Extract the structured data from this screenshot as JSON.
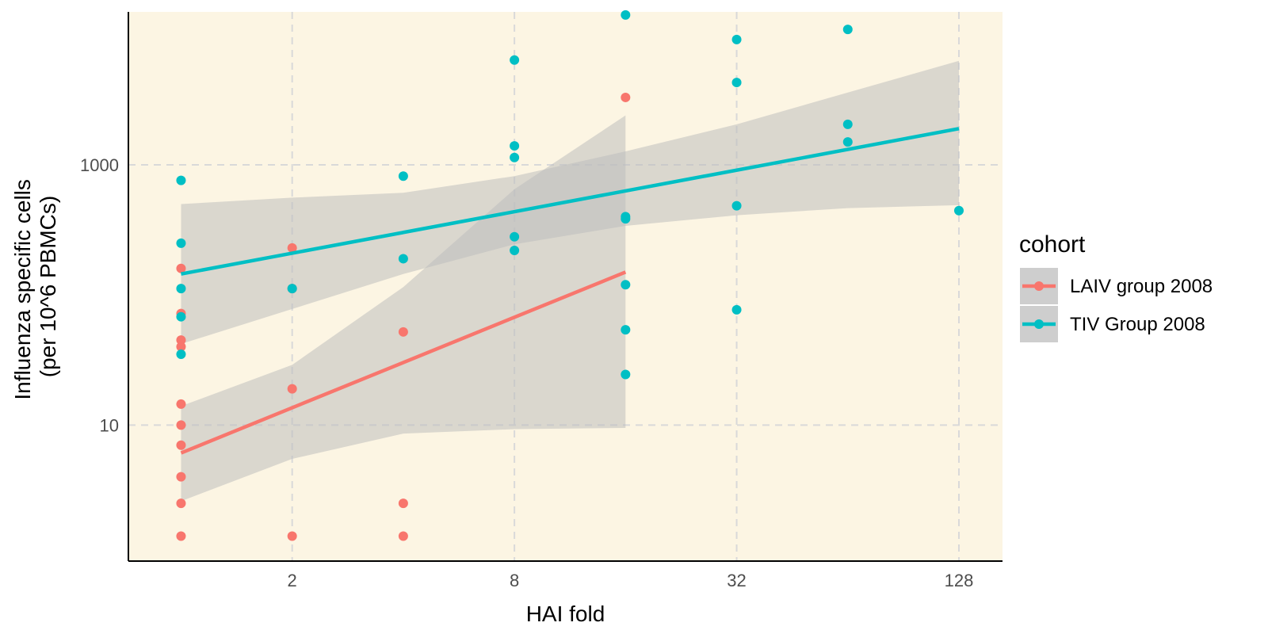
{
  "chart_data": {
    "type": "scatter",
    "title": "",
    "xlabel": "HAI fold",
    "ylabel_line1": "Influenza specific cells",
    "ylabel_line2": "(per 10^6 PBMCs)",
    "x_scale": "log2",
    "y_scale": "log10",
    "xlim": [
      0.72,
      168
    ],
    "ylim": [
      0.9,
      15000
    ],
    "x_ticks": [
      2,
      8,
      32,
      128
    ],
    "x_tick_labels": [
      "2",
      "8",
      "32",
      "128"
    ],
    "y_ticks": [
      10,
      1000
    ],
    "y_tick_labels": [
      "10",
      "1000"
    ],
    "grid": true,
    "legend_title": "cohort",
    "legend_position": "right",
    "panel_background": "#fcf5e3",
    "ribbon_color": "#bebebe",
    "series": [
      {
        "name": "LAIV group 2008",
        "color": "#f8766d",
        "points": [
          {
            "x": 1,
            "y": 160
          },
          {
            "x": 1,
            "y": 72
          },
          {
            "x": 1,
            "y": 45
          },
          {
            "x": 1,
            "y": 40
          },
          {
            "x": 1,
            "y": 14.5
          },
          {
            "x": 1,
            "y": 10
          },
          {
            "x": 1,
            "y": 7
          },
          {
            "x": 1,
            "y": 4
          },
          {
            "x": 1,
            "y": 2.5
          },
          {
            "x": 1,
            "y": 1.4
          },
          {
            "x": 2,
            "y": 230
          },
          {
            "x": 2,
            "y": 112
          },
          {
            "x": 2,
            "y": 19
          },
          {
            "x": 2,
            "y": 1.4
          },
          {
            "x": 4,
            "y": 52
          },
          {
            "x": 4,
            "y": 2.5
          },
          {
            "x": 4,
            "y": 1.4
          },
          {
            "x": 16,
            "y": 3300
          }
        ],
        "fit": {
          "x_start": 1,
          "x_end": 16,
          "y_start": 6.1,
          "y_end": 150
        },
        "band": [
          {
            "x": 1,
            "lo": 2.6,
            "hi": 14
          },
          {
            "x": 2,
            "lo": 5.5,
            "hi": 29
          },
          {
            "x": 4,
            "lo": 8.6,
            "hi": 115
          },
          {
            "x": 8,
            "lo": 9.3,
            "hi": 650
          },
          {
            "x": 16,
            "lo": 9.5,
            "hi": 2400
          }
        ]
      },
      {
        "name": "TIV Group 2008",
        "color": "#00bfc4",
        "points": [
          {
            "x": 1,
            "y": 760
          },
          {
            "x": 1,
            "y": 250
          },
          {
            "x": 1,
            "y": 112
          },
          {
            "x": 1,
            "y": 68
          },
          {
            "x": 1,
            "y": 35
          },
          {
            "x": 2,
            "y": 112
          },
          {
            "x": 4,
            "y": 820
          },
          {
            "x": 4,
            "y": 190
          },
          {
            "x": 8,
            "y": 6400
          },
          {
            "x": 8,
            "y": 1400
          },
          {
            "x": 8,
            "y": 1140
          },
          {
            "x": 8,
            "y": 280
          },
          {
            "x": 8,
            "y": 220
          },
          {
            "x": 16,
            "y": 14200
          },
          {
            "x": 16,
            "y": 400
          },
          {
            "x": 16,
            "y": 385
          },
          {
            "x": 16,
            "y": 120
          },
          {
            "x": 16,
            "y": 54
          },
          {
            "x": 16,
            "y": 24.5
          },
          {
            "x": 32,
            "y": 9200
          },
          {
            "x": 32,
            "y": 4300
          },
          {
            "x": 32,
            "y": 485
          },
          {
            "x": 32,
            "y": 77
          },
          {
            "x": 64,
            "y": 11000
          },
          {
            "x": 64,
            "y": 2050
          },
          {
            "x": 64,
            "y": 1500
          },
          {
            "x": 128,
            "y": 445
          }
        ],
        "fit": {
          "x_start": 1,
          "x_end": 128,
          "y_start": 145,
          "y_end": 1900
        },
        "band": [
          {
            "x": 1,
            "lo": 42,
            "hi": 500
          },
          {
            "x": 2,
            "lo": 78,
            "hi": 560
          },
          {
            "x": 4,
            "lo": 145,
            "hi": 610
          },
          {
            "x": 8,
            "lo": 245,
            "hi": 820
          },
          {
            "x": 16,
            "lo": 340,
            "hi": 1270
          },
          {
            "x": 32,
            "lo": 410,
            "hi": 2050
          },
          {
            "x": 64,
            "lo": 465,
            "hi": 3600
          },
          {
            "x": 128,
            "lo": 490,
            "hi": 6300
          }
        ]
      }
    ]
  }
}
